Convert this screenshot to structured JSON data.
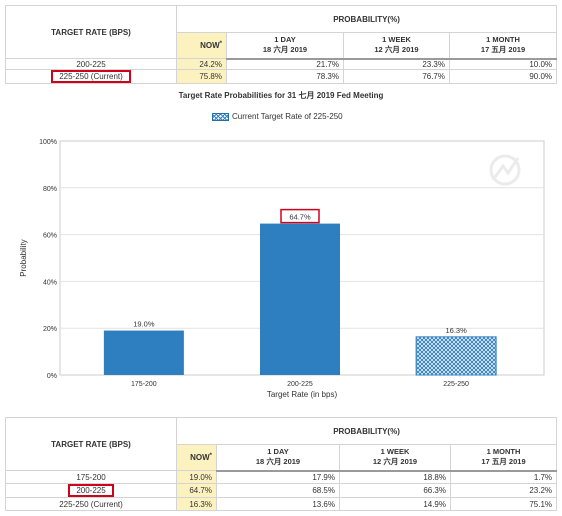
{
  "table_top": {
    "target_rate_header": "TARGET RATE (BPS)",
    "probability_header": "PROBABILITY(%)",
    "now_label": "NOW",
    "now_mark": "*",
    "cols": [
      {
        "line1": "1 DAY",
        "line2": "18 六月 2019"
      },
      {
        "line1": "1 WEEK",
        "line2": "12 六月 2019"
      },
      {
        "line1": "1 MONTH",
        "line2": "17 五月 2019"
      }
    ],
    "rows": [
      {
        "rate": "200-225",
        "now": "24.2%",
        "day": "21.7%",
        "week": "23.3%",
        "month": "10.0%",
        "highlight": false
      },
      {
        "rate": "225-250 (Current)",
        "now": "75.8%",
        "day": "78.3%",
        "week": "76.7%",
        "month": "90.0%",
        "highlight": true
      }
    ]
  },
  "chart_data": {
    "type": "bar",
    "title": "Target Rate Probabilities for 31 七月 2019 Fed Meeting",
    "legend": "Current Target Rate of 225-250",
    "legend_position": "top-center",
    "categories": [
      "175-200",
      "200-225",
      "225-250"
    ],
    "values": [
      19.0,
      64.7,
      16.3
    ],
    "value_labels": [
      "19.0%",
      "64.7%",
      "16.3%"
    ],
    "highlighted_label_index": 1,
    "current_target_index": 2,
    "xlabel": "Target Rate (in bps)",
    "ylabel": "Probability",
    "ylim": [
      0,
      100
    ],
    "yticks": [
      "0%",
      "20%",
      "40%",
      "60%",
      "80%",
      "100%"
    ],
    "grid": true,
    "bar_color": "#2e7fc0",
    "highlight_color": "#d0021b"
  },
  "table_bottom": {
    "target_rate_header": "TARGET RATE (BPS)",
    "probability_header": "PROBABILITY(%)",
    "now_label": "NOW",
    "now_mark": "*",
    "cols": [
      {
        "line1": "1 DAY",
        "line2": "18 六月 2019"
      },
      {
        "line1": "1 WEEK",
        "line2": "12 六月 2019"
      },
      {
        "line1": "1 MONTH",
        "line2": "17 五月 2019"
      }
    ],
    "rows": [
      {
        "rate": "175-200",
        "now": "19.0%",
        "day": "17.9%",
        "week": "18.8%",
        "month": "1.7%",
        "highlight": false
      },
      {
        "rate": "200-225",
        "now": "64.7%",
        "day": "68.5%",
        "week": "66.3%",
        "month": "23.2%",
        "highlight": true
      },
      {
        "rate": "225-250 (Current)",
        "now": "16.3%",
        "day": "13.6%",
        "week": "14.9%",
        "month": "75.1%",
        "highlight": false
      }
    ]
  }
}
